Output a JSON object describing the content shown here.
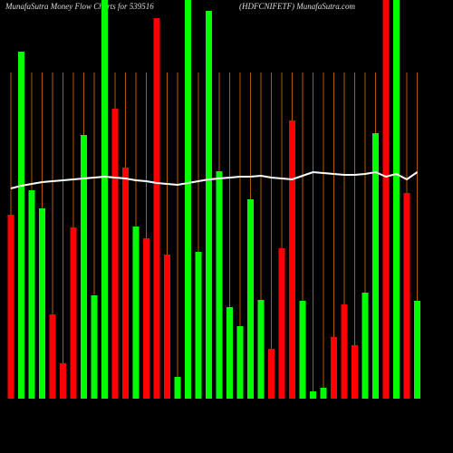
{
  "chart_data": {
    "type": "bar",
    "title": "MunafaSutra  Money Flow  Charts for 539516",
    "subtitle": "(HDFCNIFETF) MunafaSutra.com",
    "ylim": [
      0,
      440
    ],
    "grid": true,
    "grid_color": "#b35900",
    "background": "#000000",
    "values": [
      203,
      383,
      230,
      210,
      93,
      39,
      189,
      291,
      114,
      440,
      320,
      255,
      190,
      177,
      420,
      159,
      24,
      440,
      162,
      428,
      251,
      101,
      80,
      220,
      109,
      55,
      166,
      307,
      108,
      8,
      12,
      68,
      104,
      59,
      117,
      293,
      440,
      440,
      227,
      108
    ],
    "colors": [
      "#ff0000",
      "#00ff00",
      "#00ff00",
      "#00ff00",
      "#ff0000",
      "#ff0000",
      "#ff0000",
      "#00ff00",
      "#00ff00",
      "#00ff00",
      "#ff0000",
      "#ff0000",
      "#00ff00",
      "#ff0000",
      "#ff0000",
      "#ff0000",
      "#00ff00",
      "#00ff00",
      "#00ff00",
      "#00ff00",
      "#00ff00",
      "#00ff00",
      "#00ff00",
      "#00ff00",
      "#00ff00",
      "#ff0000",
      "#ff0000",
      "#ff0000",
      "#00ff00",
      "#00ff00",
      "#00ff00",
      "#ff0000",
      "#ff0000",
      "#ff0000",
      "#00ff00",
      "#00ff00",
      "#ff0000",
      "#00ff00",
      "#ff0000",
      "#00ff00"
    ],
    "line": {
      "color": "#ffffff",
      "values": [
        232,
        235,
        237,
        239,
        240,
        241,
        242,
        243,
        244,
        245,
        244,
        243,
        241,
        240,
        238,
        237,
        236,
        238,
        240,
        242,
        243,
        244,
        245,
        245,
        246,
        244,
        243,
        242,
        246,
        250,
        249,
        248,
        247,
        247,
        248,
        250,
        245,
        248,
        242,
        250
      ]
    }
  }
}
